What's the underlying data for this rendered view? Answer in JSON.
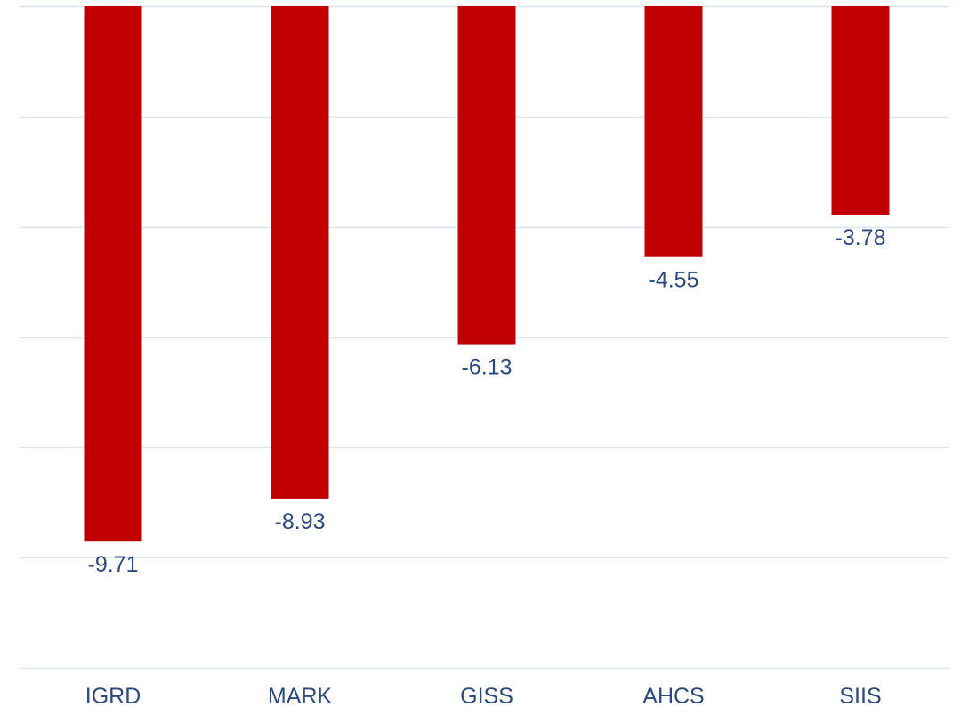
{
  "chart_data": {
    "type": "bar",
    "title": "",
    "xlabel": "",
    "ylabel": "",
    "categories": [
      "IGRD",
      "MARK",
      "GISS",
      "AHCS",
      "SIIS"
    ],
    "values": [
      -9.71,
      -8.93,
      -6.13,
      -4.55,
      -3.78
    ],
    "data_labels": [
      "-9.71",
      "-8.93",
      "-6.13",
      "-4.55",
      "-3.78"
    ],
    "ylim": [
      -12,
      0
    ],
    "y_gridline_step": 2,
    "grid": true,
    "y_axis_labels_visible": false,
    "legend": "none"
  },
  "colors": {
    "bar": "#c00000",
    "data_label": "#2e4a7d",
    "category_label": "#2e4a7d",
    "gridline": "#dce6f0"
  }
}
